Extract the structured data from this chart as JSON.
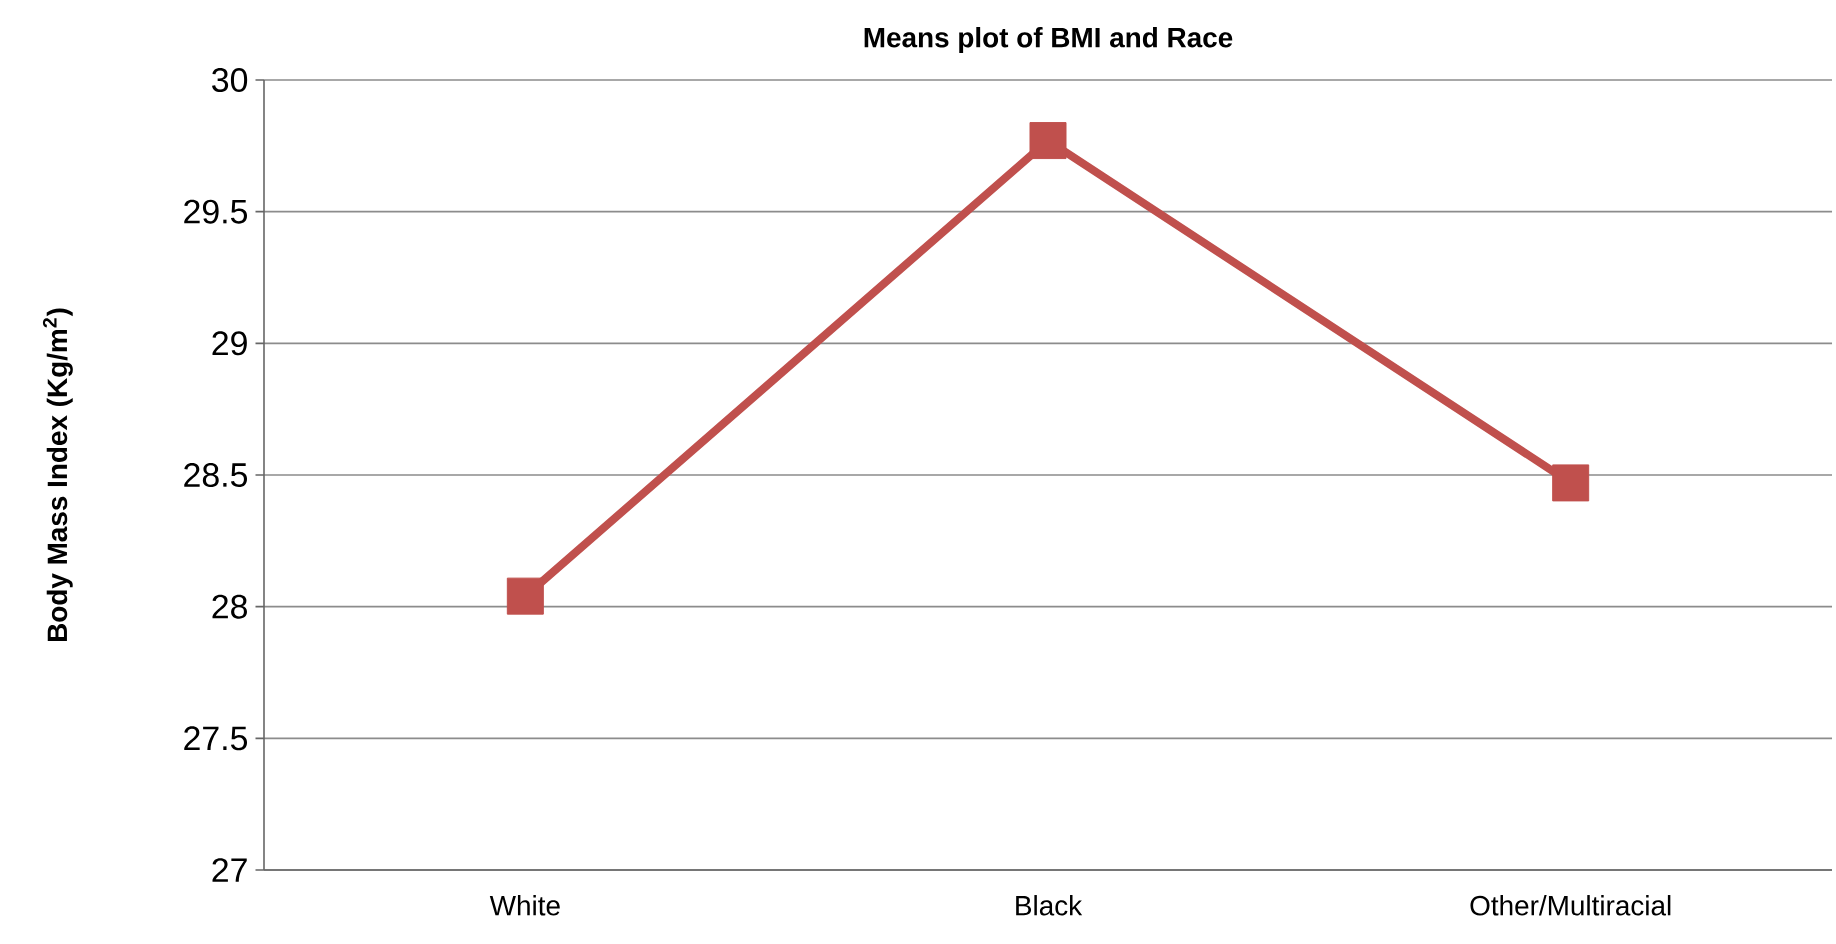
{
  "chart_data": {
    "type": "line",
    "title": "Means plot of BMI and Race",
    "ylabel": "Body Mass Index (Kg/m$^{2}$)",
    "categories": [
      "White",
      "Black",
      "Other/Multiracial"
    ],
    "series": [
      {
        "color": "#c0504d",
        "values": [
          28.04,
          29.77,
          28.47
        ]
      }
    ],
    "ylim": [
      27,
      30
    ],
    "yticks": [
      27,
      27.5,
      28,
      28.5,
      29,
      29.5,
      30
    ],
    "grid": "y",
    "marker": "square",
    "line_style": "solid"
  }
}
